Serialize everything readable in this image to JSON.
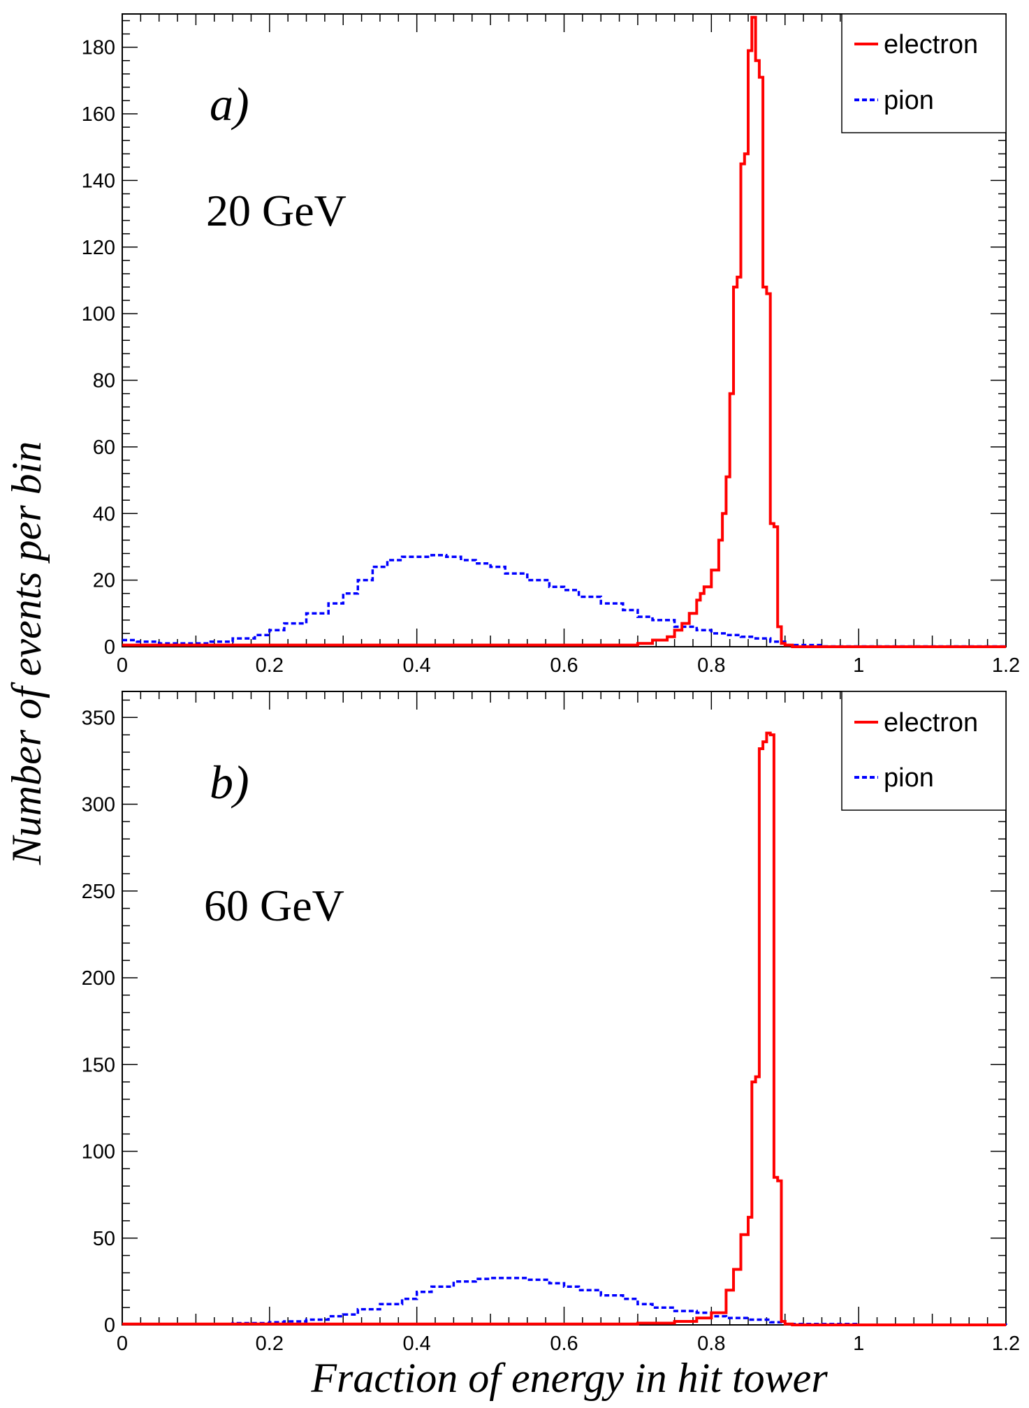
{
  "figure": {
    "ylabel": "Number of events per bin",
    "xlabel": "Fraction of energy in hit tower"
  },
  "colors": {
    "electron": "#ff0000",
    "pion": "#0000ff",
    "axis": "#000000"
  },
  "chart_data": [
    {
      "type": "line",
      "title": "a)",
      "energy_label": "20 GeV",
      "xlim": [
        0,
        1.2
      ],
      "ylim": [
        0,
        190
      ],
      "xticks": [
        0,
        0.2,
        0.4,
        0.6,
        0.8,
        1,
        1.2
      ],
      "xtick_labels": [
        "0",
        "0.2",
        "0.4",
        "0.6",
        "0.8",
        "1",
        "1.2"
      ],
      "yticks": [
        0,
        20,
        40,
        60,
        80,
        100,
        120,
        140,
        160,
        180
      ],
      "ytick_labels": [
        "0",
        "20",
        "40",
        "60",
        "80",
        "100",
        "120",
        "140",
        "160",
        "180"
      ],
      "legend": {
        "position": "top-right",
        "entries": [
          "electron",
          "pion"
        ]
      },
      "series": [
        {
          "name": "electron",
          "style": "solid",
          "x": [
            0.0,
            0.7,
            0.72,
            0.74,
            0.75,
            0.76,
            0.77,
            0.78,
            0.785,
            0.79,
            0.8,
            0.81,
            0.815,
            0.82,
            0.825,
            0.83,
            0.835,
            0.84,
            0.845,
            0.85,
            0.855,
            0.86,
            0.865,
            0.87,
            0.875,
            0.88,
            0.885,
            0.89,
            0.895,
            0.9,
            0.91,
            1.2
          ],
          "values": [
            0.5,
            1,
            2,
            3,
            5,
            7,
            10,
            14,
            16,
            18,
            23,
            32,
            40,
            51,
            76,
            108,
            111,
            145,
            148,
            179,
            189,
            176,
            171,
            108,
            106,
            37,
            36,
            6,
            1,
            0.5,
            0,
            0
          ]
        },
        {
          "name": "pion",
          "style": "dashed",
          "x": [
            0.0,
            0.02,
            0.05,
            0.08,
            0.1,
            0.12,
            0.15,
            0.18,
            0.2,
            0.22,
            0.25,
            0.28,
            0.3,
            0.32,
            0.34,
            0.36,
            0.38,
            0.4,
            0.42,
            0.44,
            0.46,
            0.48,
            0.5,
            0.52,
            0.55,
            0.58,
            0.6,
            0.62,
            0.65,
            0.68,
            0.7,
            0.72,
            0.75,
            0.78,
            0.8,
            0.82,
            0.84,
            0.86,
            0.88,
            0.9,
            0.95,
            1.0,
            1.2
          ],
          "values": [
            2,
            1.5,
            1,
            1,
            1,
            1.5,
            2.5,
            3.5,
            5,
            7,
            10,
            13,
            16,
            20,
            24,
            26,
            27,
            27,
            27.5,
            27,
            26,
            25,
            24,
            22,
            20,
            18,
            17,
            15,
            13,
            11,
            9,
            8,
            6,
            5,
            4,
            3.5,
            3,
            2.5,
            1.5,
            0.5,
            0.1,
            0.1,
            0
          ]
        }
      ]
    },
    {
      "type": "line",
      "title": "b)",
      "energy_label": "60 GeV",
      "xlim": [
        0,
        1.2
      ],
      "ylim": [
        0,
        365
      ],
      "xticks": [
        0,
        0.2,
        0.4,
        0.6,
        0.8,
        1,
        1.2
      ],
      "xtick_labels": [
        "0",
        "0.2",
        "0.4",
        "0.6",
        "0.8",
        "1",
        "1.2"
      ],
      "yticks": [
        0,
        50,
        100,
        150,
        200,
        250,
        300,
        350
      ],
      "ytick_labels": [
        "0",
        "50",
        "100",
        "150",
        "200",
        "250",
        "300",
        "350"
      ],
      "legend": {
        "position": "top-right",
        "entries": [
          "electron",
          "pion"
        ]
      },
      "series": [
        {
          "name": "electron",
          "style": "solid",
          "x": [
            0.0,
            0.7,
            0.75,
            0.78,
            0.8,
            0.82,
            0.83,
            0.84,
            0.85,
            0.855,
            0.86,
            0.865,
            0.87,
            0.875,
            0.88,
            0.885,
            0.89,
            0.895,
            0.9,
            0.91,
            1.2
          ],
          "values": [
            0.5,
            1,
            2,
            4,
            7,
            20,
            32,
            52,
            62,
            140,
            143,
            332,
            336,
            341,
            340,
            85,
            83,
            2,
            0.5,
            0,
            0
          ]
        },
        {
          "name": "pion",
          "style": "dashed",
          "x": [
            0.0,
            0.1,
            0.15,
            0.2,
            0.22,
            0.25,
            0.28,
            0.3,
            0.32,
            0.35,
            0.38,
            0.4,
            0.42,
            0.45,
            0.48,
            0.5,
            0.52,
            0.55,
            0.58,
            0.6,
            0.62,
            0.65,
            0.68,
            0.7,
            0.72,
            0.75,
            0.78,
            0.8,
            0.82,
            0.85,
            0.88,
            0.9,
            1.0,
            1.2
          ],
          "values": [
            0.5,
            0.5,
            1,
            1.5,
            2,
            3,
            5,
            6,
            9,
            12,
            15,
            19,
            22,
            25,
            26.5,
            27,
            27,
            26,
            24,
            22,
            20,
            17,
            15,
            12,
            10,
            8,
            7,
            5,
            4,
            3,
            1.5,
            0.5,
            0.1,
            0
          ]
        }
      ]
    }
  ]
}
